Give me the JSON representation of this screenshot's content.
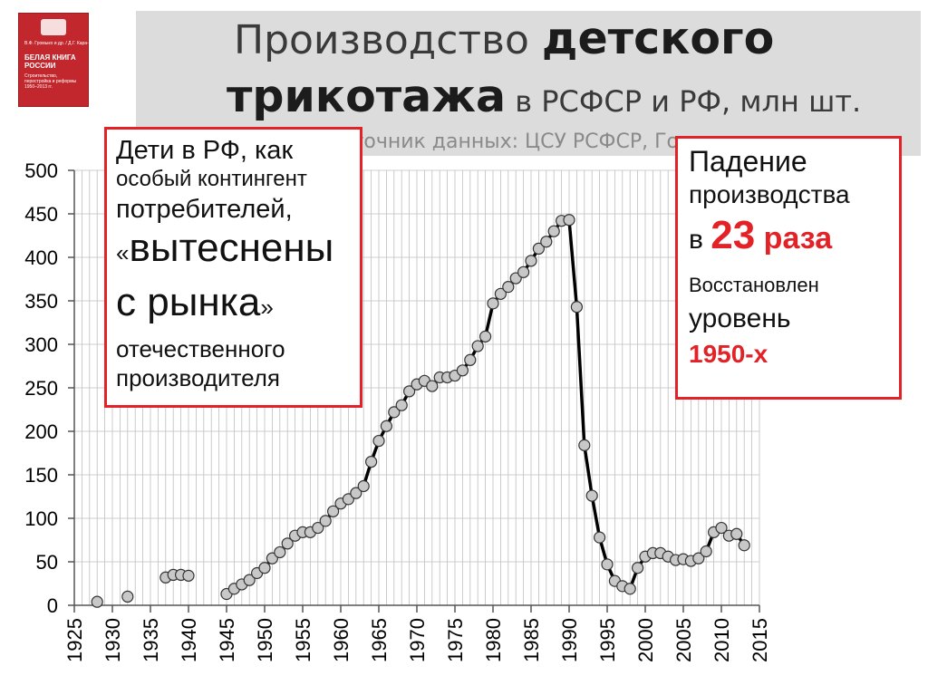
{
  "title": {
    "part1": "Производство ",
    "part2": "детского",
    "part3": "трикотажа",
    "part4": " в РСФСР и РФ, млн шт."
  },
  "source": "Источник данных: ЦСУ РСФСР, Госкомстат",
  "book": {
    "authors": "В.Ф. Громыко и др. / Д.Г. Кара-Мурза",
    "title_line1": "БЕЛАЯ КНИГА",
    "title_line2": "РОССИИ",
    "subtitle": "Строительство, перестройка и реформы 1950–2013 гг."
  },
  "left_callout": {
    "line1": "Дети в РФ, как",
    "line2": "особый контингент",
    "line3": "потребителей,",
    "quote_open": "«",
    "line4": "вытеснены",
    "line5": "с рынка",
    "quote_close": "»",
    "line6": "отечественного",
    "line7": "производителя"
  },
  "right_callout": {
    "line1": "Падение",
    "line2": "производства",
    "line3_prefix": "в ",
    "line3_num": "23",
    "line3_suffix": " раза",
    "line4": "Восстановлен",
    "line5": "уровень",
    "line6": "1950-х"
  },
  "colors": {
    "accent_red": "#e32228",
    "marker_fill": "#c8c8c8",
    "line": "#000000",
    "grid": "#bfbfbf",
    "title_band": "#dcdcdc"
  },
  "chart_data": {
    "type": "line",
    "title": "Производство детского трикотажа в РСФСР и РФ, млн шт.",
    "xlabel": "",
    "ylabel": "",
    "xlim": [
      1925,
      2015
    ],
    "ylim": [
      0,
      500
    ],
    "x_ticks": [
      1925,
      1930,
      1935,
      1940,
      1945,
      1950,
      1955,
      1960,
      1965,
      1970,
      1975,
      1980,
      1985,
      1990,
      1995,
      2000,
      2005,
      2010,
      2015
    ],
    "y_ticks": [
      0,
      50,
      100,
      150,
      200,
      250,
      300,
      350,
      400,
      450,
      500
    ],
    "grid": true,
    "isolated_points": [
      {
        "x": 1928,
        "y": 4
      },
      {
        "x": 1932,
        "y": 10
      },
      {
        "x": 1937,
        "y": 32
      },
      {
        "x": 1938,
        "y": 35
      },
      {
        "x": 1939,
        "y": 35
      },
      {
        "x": 1940,
        "y": 34
      }
    ],
    "series": [
      {
        "x": [
          1945,
          1946,
          1947,
          1948,
          1949,
          1950,
          1951,
          1952,
          1953,
          1954,
          1955,
          1956,
          1957,
          1958,
          1959,
          1960,
          1961,
          1962,
          1963,
          1964,
          1965,
          1966,
          1967,
          1968,
          1969,
          1970,
          1971,
          1972,
          1973,
          1974,
          1975,
          1976,
          1977,
          1978,
          1979,
          1980,
          1981,
          1982,
          1983,
          1984,
          1985,
          1986,
          1987,
          1988,
          1989,
          1990,
          1991,
          1992,
          1993,
          1994,
          1995,
          1996,
          1997,
          1998,
          1999,
          2000,
          2001,
          2002,
          2003,
          2004,
          2005,
          2006,
          2007,
          2008,
          2009,
          2010,
          2011,
          2012,
          2013
        ],
        "y": [
          13,
          19,
          24,
          29,
          37,
          43,
          54,
          61,
          71,
          80,
          84,
          84,
          89,
          97,
          108,
          117,
          122,
          129,
          137,
          165,
          189,
          206,
          222,
          230,
          246,
          254,
          258,
          252,
          262,
          262,
          264,
          270,
          282,
          298,
          309,
          347,
          358,
          366,
          376,
          383,
          396,
          410,
          418,
          430,
          442,
          443,
          343,
          184,
          126,
          78,
          47,
          28,
          22,
          19,
          43,
          56,
          60,
          60,
          56,
          52,
          53,
          51,
          54,
          62,
          84,
          89,
          80,
          82,
          69
        ]
      }
    ]
  }
}
